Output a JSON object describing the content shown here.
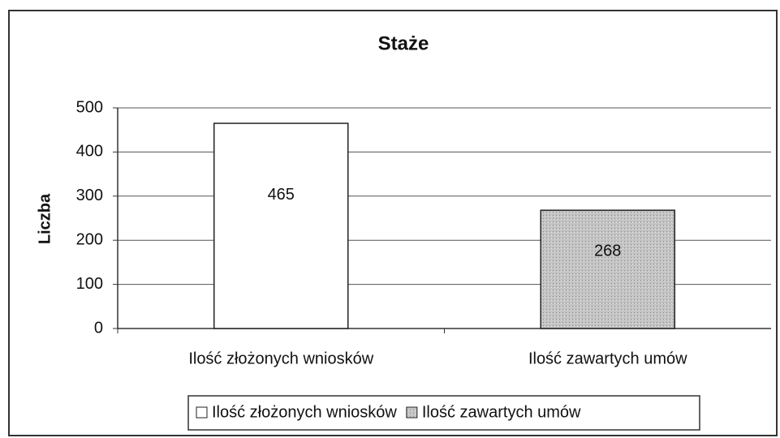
{
  "chart_data": {
    "type": "bar",
    "title": "Staże",
    "ylabel": "Liczba",
    "categories": [
      "Ilość złożonych wniosków",
      "Ilość zawartych umów"
    ],
    "series": [
      {
        "name": "Ilość złożonych wniosków",
        "color": "#ffffff",
        "values": [
          465,
          null
        ]
      },
      {
        "name": "Ilość zawartych umów",
        "color": "#c4c4c4",
        "values": [
          null,
          268
        ]
      }
    ],
    "ylim": [
      0,
      500
    ],
    "yticks": [
      0,
      100,
      200,
      300,
      400,
      500
    ],
    "grid": true,
    "legend": "bottom"
  }
}
